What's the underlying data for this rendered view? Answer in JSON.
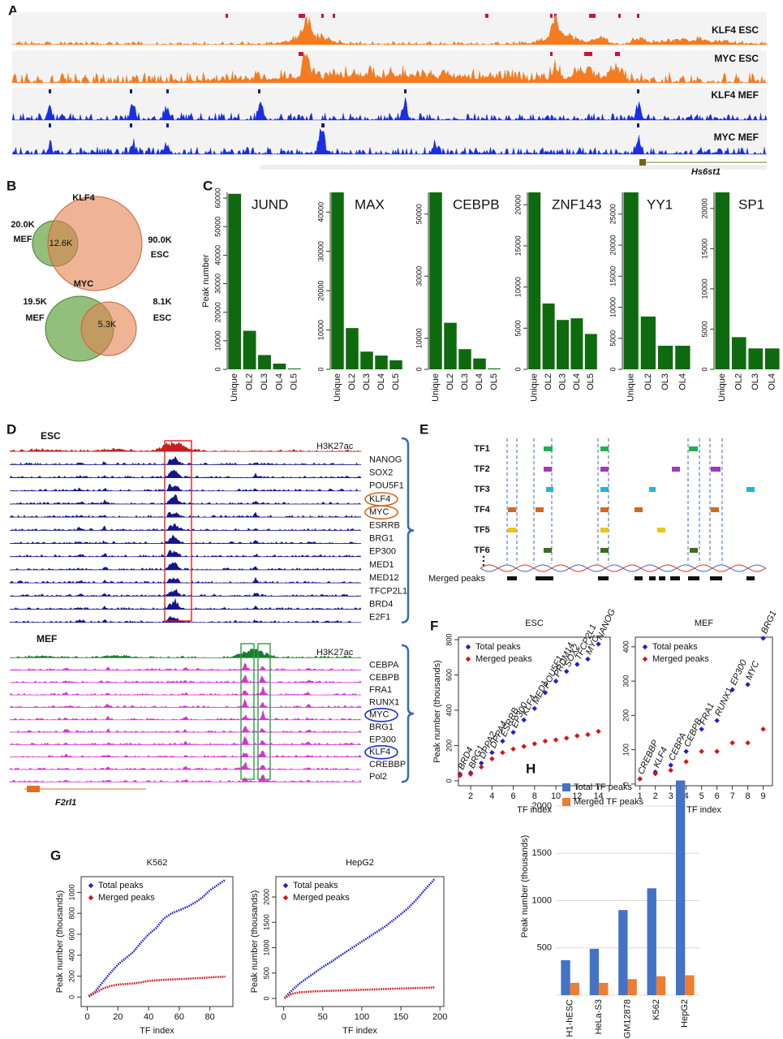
{
  "panel_labels": [
    "A",
    "B",
    "C",
    "D",
    "E",
    "F",
    "G",
    "H"
  ],
  "tracks_a": {
    "tracks": [
      {
        "name": "KLF4 ESC",
        "color": "#f47b20"
      },
      {
        "name": "MYC ESC",
        "color": "#f47b20"
      },
      {
        "name": "KLF4 MEF",
        "color": "#1a2ee6"
      },
      {
        "name": "MYC MEF",
        "color": "#1a2ee6"
      }
    ],
    "gene": "Hs6st1"
  },
  "venn": [
    {
      "title": "KLF4",
      "left_value": "20.0K",
      "left_name": "MEF",
      "overlap": "12.6K",
      "right_value": "90.0K",
      "right_name": "ESC"
    },
    {
      "title": "MYC",
      "left_value": "19.5K",
      "left_name": "MEF",
      "overlap": "5.3K",
      "right_value": "8.1K",
      "right_name": "ESC"
    }
  ],
  "tracks_d": {
    "groups": [
      {
        "title": "ESC",
        "color": "#15158a",
        "first_color": "#c41e1e",
        "tracks": [
          "H3K27ac",
          "NANOG",
          "SOX2",
          "POU5F1",
          "KLF4",
          "MYC",
          "ESRRB",
          "BRG1",
          "EP300",
          "MED1",
          "MED12",
          "TFCP2L1",
          "BRD4",
          "E2F1"
        ]
      },
      {
        "title": "MEF",
        "color": "#d633d6",
        "first_color": "#1e7b32",
        "tracks": [
          "H3K27ac",
          "CEBPA",
          "CEBPB",
          "FRA1",
          "RUNX1",
          "MYC",
          "BRG1",
          "EP300",
          "KLF4",
          "CREBBP",
          "Pol2"
        ]
      }
    ],
    "gene": "F2rl1"
  },
  "schematic_e": {
    "tfs": [
      "TF1",
      "TF2",
      "TF3",
      "TF4",
      "TF5",
      "TF6"
    ],
    "colors": [
      "#22b04c",
      "#a23ab5",
      "#20b4e0",
      "#d2691e",
      "#e8c81a",
      "#3a6e20"
    ],
    "merged_label": "Merged peaks"
  },
  "chart_data": [
    {
      "type": "bar",
      "title": "JUND",
      "ylabel": "Peak number",
      "color": "#0e6a0e",
      "categories": [
        "Unique",
        "OL2",
        "OL3",
        "OL4",
        "OL5"
      ],
      "values": [
        61500,
        13500,
        5000,
        2000,
        300
      ],
      "ylim": [
        0,
        62000
      ],
      "yticks": [
        0,
        10000,
        20000,
        30000,
        40000,
        50000,
        60000
      ]
    },
    {
      "type": "bar",
      "title": "MAX",
      "color": "#0e6a0e",
      "categories": [
        "Unique",
        "OL2",
        "OL3",
        "OL4",
        "OL5"
      ],
      "values": [
        45000,
        10500,
        4500,
        3500,
        2300
      ],
      "ylim": [
        0,
        45000
      ],
      "yticks": [
        0,
        10000,
        20000,
        30000,
        40000
      ]
    },
    {
      "type": "bar",
      "title": "CEBPB",
      "color": "#0e6a0e",
      "categories": [
        "Unique",
        "OL2",
        "OL3",
        "OL4",
        "OL5"
      ],
      "values": [
        57000,
        15000,
        6500,
        3500,
        300
      ],
      "ylim": [
        0,
        57000
      ],
      "yticks": [
        0,
        10000,
        30000,
        50000
      ]
    },
    {
      "type": "bar",
      "title": "ZNF143",
      "color": "#0e6a0e",
      "categories": [
        "Unique",
        "OL2",
        "OL3",
        "OL4",
        "OL5"
      ],
      "values": [
        21500,
        8000,
        6000,
        6200,
        4300
      ],
      "ylim": [
        0,
        21500
      ],
      "yticks": [
        0,
        5000,
        10000,
        15000,
        20000
      ]
    },
    {
      "type": "bar",
      "title": "YY1",
      "color": "#0e6a0e",
      "categories": [
        "Unique",
        "OL2",
        "OL3",
        "OL4"
      ],
      "values": [
        28500,
        8500,
        3800,
        3800
      ],
      "ylim": [
        0,
        28500
      ],
      "yticks": [
        0,
        5000,
        10000,
        15000,
        20000,
        25000
      ]
    },
    {
      "type": "bar",
      "title": "SP1",
      "color": "#0e6a0e",
      "categories": [
        "Unique",
        "OL2",
        "OL3",
        "OL4"
      ],
      "values": [
        22000,
        4000,
        2600,
        2600
      ],
      "ylim": [
        0,
        22000
      ],
      "yticks": [
        0,
        5000,
        10000,
        15000,
        20000
      ]
    },
    {
      "type": "scatter",
      "title": "ESC",
      "xlabel": "TF index",
      "ylabel": "Peak number (thousands)",
      "label_color": "#c55a11",
      "x": [
        1,
        2,
        3,
        4,
        5,
        6,
        7,
        8,
        9,
        10,
        11,
        12,
        13,
        14
      ],
      "point_labels": [
        "BRD4",
        "BRG1",
        "DPPA2",
        "DPPA4",
        "ESRRB",
        "EP300",
        "KLF4",
        "MED1",
        "POU5F1",
        "PRDM14",
        "SOX2",
        "TFCP2L1",
        "MYC",
        "NANOG"
      ],
      "series": [
        {
          "name": "Total peaks",
          "color": "#1f1fd0",
          "values": [
            38,
            45,
            100,
            160,
            225,
            275,
            345,
            410,
            500,
            565,
            620,
            660,
            690,
            775
          ]
        },
        {
          "name": "Merged peaks",
          "color": "#e01010",
          "values": [
            30,
            38,
            78,
            125,
            160,
            180,
            195,
            210,
            225,
            232,
            242,
            255,
            262,
            280
          ]
        }
      ],
      "xlim": [
        0.85,
        15.1
      ],
      "ylim": [
        -28,
        814
      ],
      "xticks": [
        2,
        4,
        6,
        8,
        10,
        12,
        14
      ],
      "yticks": [
        0,
        200,
        400,
        600,
        800
      ]
    },
    {
      "type": "scatter",
      "title": "MEF",
      "xlabel": "TF index",
      "label_color": "#c55a11",
      "x": [
        1,
        2,
        3,
        4,
        5,
        6,
        7,
        8,
        9
      ],
      "point_labels": [
        "CREBBP",
        "KLF4",
        "CEBPA",
        "CEBPB",
        "FRA1",
        "RUNX1",
        "EP300",
        "MYC",
        "BRG1"
      ],
      "series": [
        {
          "name": "Total peaks",
          "color": "#1f1fd0",
          "values": [
            15,
            35,
            55,
            95,
            160,
            185,
            275,
            290,
            425
          ]
        },
        {
          "name": "Merged peaks",
          "color": "#e01010",
          "values": [
            15,
            30,
            40,
            65,
            95,
            95,
            120,
            120,
            160
          ]
        }
      ],
      "xlim": [
        0.7,
        9.6
      ],
      "ylim": [
        -5,
        428
      ],
      "xticks": [
        1,
        2,
        3,
        4,
        5,
        6,
        7,
        8,
        9
      ],
      "yticks": [
        0,
        100,
        200,
        300,
        400
      ]
    },
    {
      "type": "line",
      "title": "K562",
      "xlabel": "TF index",
      "ylabel": "Peak number (thousands)",
      "x": [
        1,
        5,
        10,
        15,
        20,
        25,
        30,
        35,
        40,
        45,
        50,
        55,
        60,
        65,
        70,
        75,
        80,
        85,
        90
      ],
      "series": [
        {
          "name": "Total peaks",
          "color": "#1f1fd0",
          "values": [
            10,
            50,
            140,
            230,
            310,
            370,
            430,
            520,
            600,
            660,
            750,
            800,
            830,
            860,
            900,
            950,
            1020,
            1070,
            1120
          ]
        },
        {
          "name": "Merged peaks",
          "color": "#e01010",
          "values": [
            5,
            40,
            80,
            105,
            120,
            125,
            130,
            140,
            155,
            160,
            165,
            168,
            172,
            175,
            180,
            183,
            188,
            192,
            195
          ]
        }
      ],
      "xlim": [
        -4,
        95
      ],
      "ylim": [
        -90,
        1150
      ],
      "xticks": [
        0,
        20,
        40,
        60,
        80
      ],
      "yticks": [
        0,
        200,
        400,
        600,
        800,
        1000
      ]
    },
    {
      "type": "line",
      "title": "HepG2",
      "xlabel": "TF index",
      "ylabel": "Peak number (thousands)",
      "x": [
        1,
        10,
        20,
        30,
        40,
        50,
        60,
        70,
        80,
        90,
        100,
        110,
        120,
        130,
        140,
        150,
        160,
        170,
        180,
        190,
        193
      ],
      "series": [
        {
          "name": "Total peaks",
          "color": "#1f1fd0",
          "values": [
            10,
            150,
            290,
            400,
            510,
            620,
            710,
            820,
            920,
            1020,
            1120,
            1220,
            1320,
            1420,
            1540,
            1660,
            1790,
            1950,
            2130,
            2300,
            2350
          ]
        },
        {
          "name": "Merged peaks",
          "color": "#e01010",
          "values": [
            5,
            90,
            120,
            130,
            140,
            145,
            150,
            155,
            160,
            165,
            170,
            175,
            180,
            185,
            190,
            195,
            200,
            205,
            210,
            215,
            220
          ]
        }
      ],
      "xlim": [
        -10,
        205
      ],
      "ylim": [
        -160,
        2400
      ],
      "xticks": [
        0,
        50,
        100,
        150,
        200
      ],
      "yticks": [
        0,
        500,
        1000,
        1500,
        2000
      ]
    },
    {
      "type": "bar",
      "ylabel": "Peak number (thousands)",
      "grid": true,
      "categories": [
        "H1-hESC",
        "HeLa-S3",
        "GM12878",
        "K562",
        "HepG2"
      ],
      "series": [
        {
          "name": "Total TF peaks",
          "color": "#4472c4",
          "values": [
            370,
            490,
            900,
            1130,
            2270
          ]
        },
        {
          "name": "Merged TF peaks",
          "color": "#ed7d31",
          "values": [
            130,
            130,
            170,
            200,
            210
          ]
        }
      ],
      "ylim": [
        0,
        2300
      ],
      "yticks": [
        500,
        1000,
        1500,
        2000
      ]
    }
  ]
}
